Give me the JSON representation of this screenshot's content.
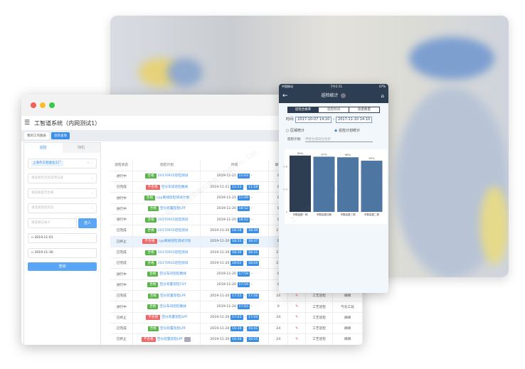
{
  "desktop": {
    "app_title": "工智道系统（内网测试1）",
    "tabs": [
      {
        "label": "我的工作图表"
      },
      {
        "label": "巡检查询"
      }
    ],
    "left_panel": {
      "tabs": [
        "巡检",
        "随机"
      ],
      "factory_chip": "上海齐工智能化工厂",
      "selects": [
        "请选择有无异常项记录",
        "请选择是否合格",
        "请选择巡检状态"
      ],
      "recorder_placeholder": "请选择记录人",
      "select_button": "选人",
      "start_date": "2019-11-01",
      "end_date": "2019-11-30",
      "query_button": "查询"
    },
    "table": {
      "headers": [
        "巡检状态",
        "巡检计划",
        "时间",
        "填写",
        "",
        "",
        ""
      ],
      "rows": [
        {
          "status": "进行中",
          "result": "合格",
          "plan": "20170915巡检测试",
          "date": "2019-11-21",
          "start": "12:03",
          "end": "",
          "fill": "0",
          "c6": "",
          "c7": ""
        },
        {
          "status": "已完成",
          "result": "不合格",
          "plan": "空分车间巡检路线",
          "date": "2019-11-21",
          "start": "11:53",
          "end": "11:58",
          "fill": "0",
          "c6": "",
          "c7": ""
        },
        {
          "status": "进行中",
          "result": "合格",
          "plan": "cyp离线巡检测试计划",
          "date": "2019-11-21",
          "start": "11:49",
          "end": "",
          "fill": "0",
          "c6": "",
          "c7": ""
        },
        {
          "status": "进行中",
          "result": "合格",
          "plan": "空分装置巡检LPF",
          "date": "2019-11-20",
          "start": "18:52",
          "end": "",
          "fill": "0",
          "c6": "",
          "c7": ""
        },
        {
          "status": "进行中",
          "result": "合格",
          "plan": "20170915巡检测试",
          "date": "2019-11-20",
          "start": "18:52",
          "end": "",
          "fill": "0",
          "c6": "",
          "c7": ""
        },
        {
          "status": "已完成",
          "result": "合格",
          "plan": "20170915巡检测试",
          "date": "2019-11-20",
          "start": "18:18",
          "end": "18:39",
          "fill": "21",
          "c6": "",
          "c7": ""
        },
        {
          "status": "已终止",
          "result": "不合格",
          "plan": "cyp离线巡检测试计划",
          "date": "2019-11-20",
          "start": "18:35",
          "end": "18:37",
          "fill": "0",
          "c6": "",
          "c7": ""
        },
        {
          "status": "已完成",
          "result": "合格",
          "plan": "20170915巡检测试",
          "date": "2019-11-20",
          "start": "18:30",
          "end": "18:31",
          "fill": "21",
          "c6": "",
          "c7": ""
        },
        {
          "status": "已完成",
          "result": "合格",
          "plan": "20170915巡检测试",
          "date": "2019-11-20",
          "start": "18:02",
          "end": "18:04",
          "fill": "21",
          "c6": "",
          "c7": ""
        },
        {
          "status": "进行中",
          "result": "合格",
          "plan": "空分车间巡检路线",
          "date": "2019-11-20",
          "start": "17:59",
          "end": "",
          "fill": "0",
          "c6": "",
          "c7": ""
        },
        {
          "status": "进行中",
          "result": "合格",
          "plan": "空分装置巡检CSY",
          "date": "2019-11-20",
          "start": "17:59",
          "end": "",
          "fill": "0",
          "c6": "",
          "c7": ""
        },
        {
          "status": "已完成",
          "result": "合格",
          "plan": "空分装置巡检LPF",
          "date": "2019-11-20",
          "start": "17:55",
          "end": "17:56",
          "fill": "24",
          "c6": "工艺巡检",
          "c7": "阀阀"
        },
        {
          "status": "进行中",
          "result": "合格",
          "plan": "空分车间巡检路线",
          "date": "2019-11-20",
          "start": "17:03",
          "end": "",
          "fill": "0",
          "c6": "工艺巡检",
          "c7": "气化工段"
        },
        {
          "status": "已终止",
          "result": "不合格",
          "plan": "空分装置巡检LPF",
          "date": "2019-11-20",
          "start": "17:03",
          "end": "17:04",
          "fill": "24",
          "c6": "工艺巡检",
          "c7": "阀阀"
        },
        {
          "status": "已完成",
          "result": "合格",
          "plan": "空分装置巡检LPF",
          "date": "2019-11-20",
          "start": "16:38",
          "end": "16:41",
          "fill": "24",
          "c6": "工艺巡检",
          "c7": "阀阀"
        },
        {
          "status": "已终止",
          "result": "不合格",
          "plan": "空分装置巡检LPF",
          "date": "2019-11-20",
          "start": "16:48",
          "end": "16:55",
          "fill": "24",
          "c6": "工艺巡检",
          "c7": "阀阀"
        }
      ]
    }
  },
  "mobile": {
    "status_bar": {
      "carrier": "中国移动",
      "time": "下午2:11",
      "battery": "67%"
    },
    "title": "巡检统计",
    "segments": [
      "巡检合格率",
      "巡检时间",
      "隐患数量"
    ],
    "time_label": "时间:",
    "start": "2017-10-07 14:10",
    "end": "2017-11-10 14:10",
    "radios": [
      {
        "label": "区域统计",
        "checked": false
      },
      {
        "label": "巡检计划统计",
        "checked": true
      }
    ],
    "plan_label": "巡检计划:",
    "plan_value": "甲醇合成岗位巡检"
  },
  "chart_data": {
    "type": "bar",
    "categories": [
      "甲醇装置一期",
      "甲醇装置四期",
      "甲醇装置三期",
      "甲醇装置二期"
    ],
    "values": [
      0.99,
      0.97,
      0.96,
      0.9
    ],
    "data_labels": [
      "99%",
      "97%",
      "96%",
      "90%"
    ],
    "ylim": [
      0,
      1
    ],
    "yticks": [
      "0",
      "0.4",
      "0.8"
    ],
    "colors": [
      "#2d3e53",
      "#4e76a3",
      "#4e76a3",
      "#4e76a3"
    ],
    "grid": true
  },
  "colors": {
    "primary": "#3a8ee6",
    "pass": "#5ab44a",
    "fail": "#f06565",
    "dark": "#2d3e53"
  }
}
